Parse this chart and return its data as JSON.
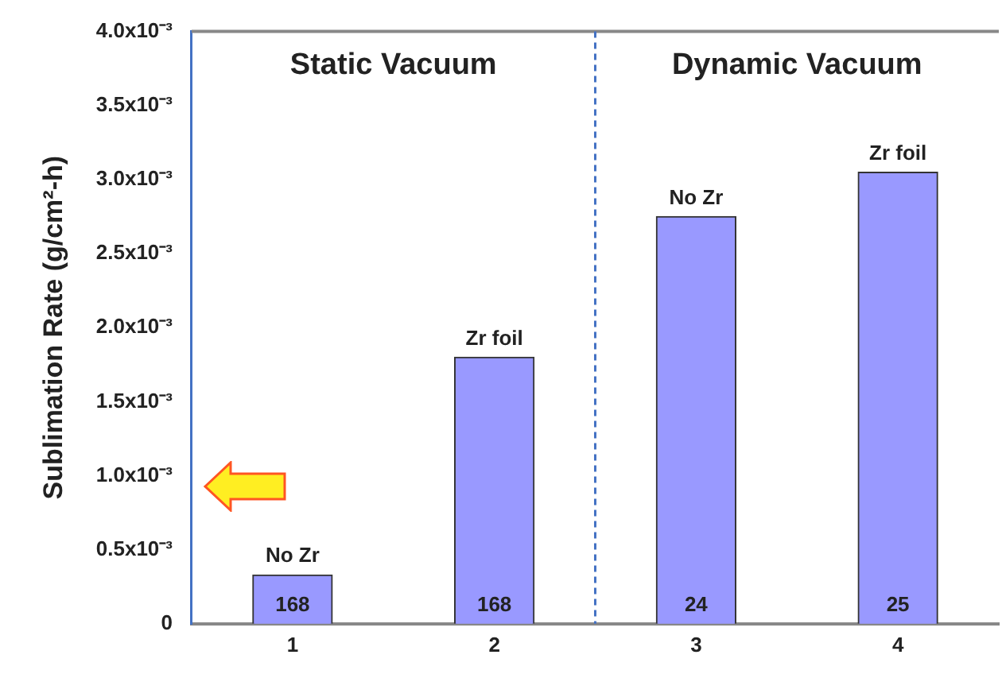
{
  "chart_data": {
    "type": "bar",
    "ylabel": "Sublimation Rate (g/cm²-h)",
    "x": [
      1,
      2,
      3,
      4
    ],
    "values": [
      0.00033,
      0.0018,
      0.00275,
      0.00305
    ],
    "color": "#9999ff",
    "xlim": [
      0.5,
      4.5
    ],
    "xticks": [
      1,
      2,
      3,
      4
    ],
    "ylim": [
      0,
      0.004
    ],
    "yticks": [
      {
        "value": 0,
        "label": "0"
      },
      {
        "value": 0.0005,
        "label": "0.5x10⁻³"
      },
      {
        "value": 0.001,
        "label": "1.0x10⁻³"
      },
      {
        "value": 0.0015,
        "label": "1.5x10⁻³"
      },
      {
        "value": 0.002,
        "label": "2.0x10⁻³"
      },
      {
        "value": 0.0025,
        "label": "2.5x10⁻³"
      },
      {
        "value": 0.003,
        "label": "3.0x10⁻³"
      },
      {
        "value": 0.0035,
        "label": "3.5x10⁻³"
      },
      {
        "value": 0.004,
        "label": "4.0x10⁻³"
      }
    ],
    "grid": false,
    "legend": false,
    "ref_lines": [
      {
        "axis": "x",
        "value": 2.5,
        "color": "#4472c4",
        "line_style": "dashed"
      }
    ],
    "annotations": [
      "Static Vacuum",
      "Dynamic Vacuum",
      {
        "text": "No Zr",
        "x": 1,
        "y": 0.00033
      },
      {
        "text": "Zr foil",
        "x": 2,
        "y": 0.0018
      },
      {
        "text": "No Zr",
        "x": 3,
        "y": 0.00275
      },
      {
        "text": "Zr foil",
        "x": 4,
        "y": 0.00305
      },
      {
        "text": "168",
        "x": 1,
        "y": 0
      },
      {
        "text": "168",
        "x": 2,
        "y": 0
      },
      {
        "text": "24",
        "x": 3,
        "y": 0
      },
      {
        "text": "25",
        "x": 4,
        "y": 0
      }
    ]
  }
}
